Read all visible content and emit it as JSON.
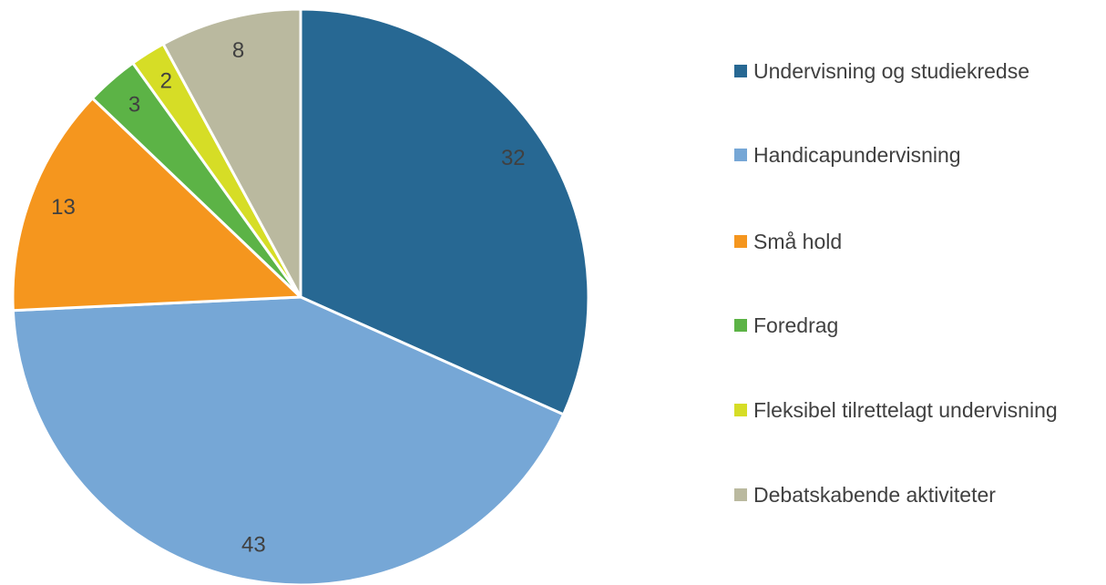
{
  "chart_data": {
    "type": "pie",
    "categories": [
      "Undervisning og studiekredse",
      "Handicapundervisning",
      "Små hold",
      "Foredrag",
      "Fleksibel tilrettelagt undervisning",
      "Debatskabende aktiviteter"
    ],
    "values": [
      32,
      43,
      13,
      3,
      2,
      8
    ],
    "colors": [
      "#276893",
      "#76a7d6",
      "#f5961e",
      "#5cb346",
      "#d6dd26",
      "#bab99f"
    ],
    "legend": "right"
  }
}
